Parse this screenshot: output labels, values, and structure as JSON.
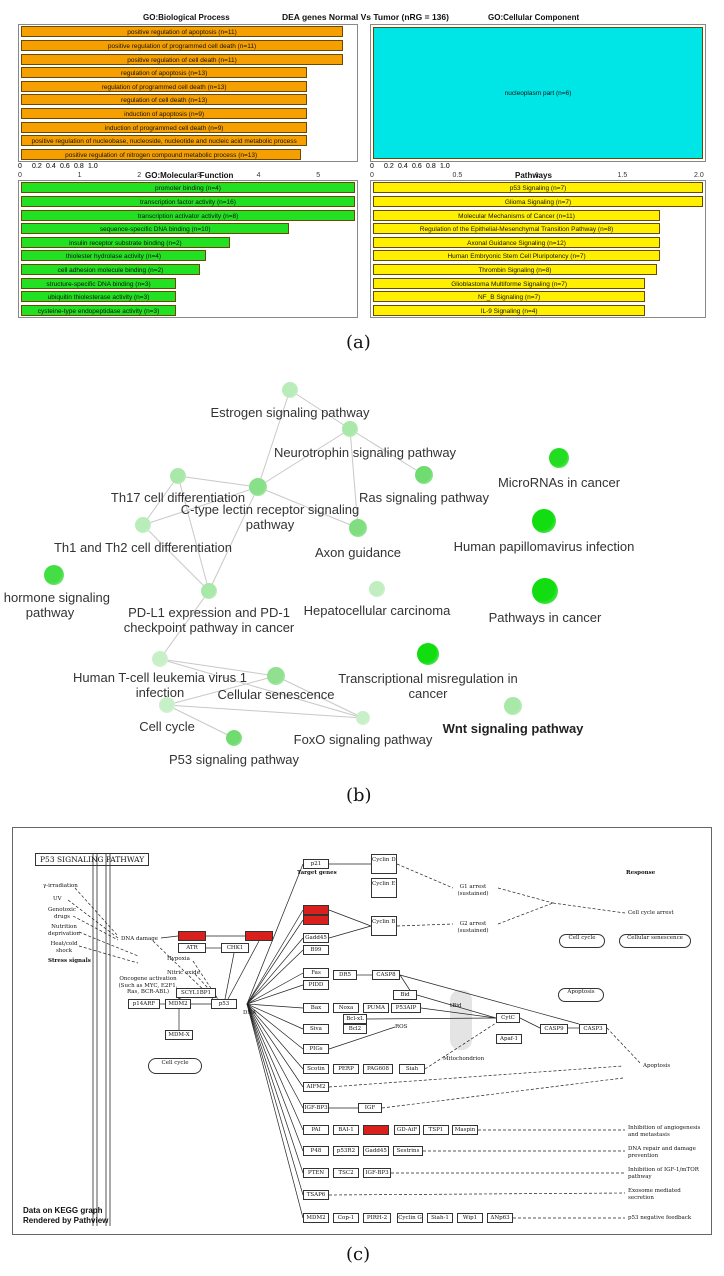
{
  "panel_a": {
    "label": "(a)",
    "main_title": "DEA genes Normal Vs Tumor (nRG = 136)",
    "bp": {
      "title": "GO:Biological Process",
      "ticks": [
        "0",
        "0.2",
        "0.4",
        "0.6",
        "0.8",
        "1.0"
      ],
      "axis": [
        "0",
        "1",
        "2",
        "3",
        "4",
        "5"
      ],
      "bars": [
        {
          "label": "positive regulation of apoptosis (n=11)",
          "value": 5.4
        },
        {
          "label": "positive regulation of programmed cell death (n=11)",
          "value": 5.4
        },
        {
          "label": "positive regulation of cell death (n=11)",
          "value": 5.4
        },
        {
          "label": "regulation of apoptosis (n=13)",
          "value": 4.8
        },
        {
          "label": "regulation of programmed cell death (n=13)",
          "value": 4.8
        },
        {
          "label": "regulation of cell death (n=13)",
          "value": 4.8
        },
        {
          "label": "induction of apoptosis (n=9)",
          "value": 4.8
        },
        {
          "label": "induction of programmed cell death (n=9)",
          "value": 4.8
        },
        {
          "label": "positive regulation of nucleobase, nucleoside, nucleotide and nucleic acid metabolic process",
          "value": 4.8
        },
        {
          "label": "positive regulation of nitrogen compound metabolic process (n=13)",
          "value": 4.7
        }
      ]
    },
    "cc": {
      "title": "GO:Cellular Component",
      "ticks": [
        "0",
        "0.2",
        "0.4",
        "0.6",
        "0.8",
        "1.0"
      ],
      "axis": [
        "0",
        "0.5",
        "1",
        "1.5",
        "2.0"
      ],
      "bars": [
        {
          "label": "nucleoplasm part (n=6)",
          "value": 2.0
        }
      ]
    },
    "mf": {
      "title": "GO:Molecular Function",
      "ticks": [
        "0",
        "0.2",
        "0.4",
        "0.6",
        "0.8",
        "1.0"
      ],
      "bars": [
        {
          "label": "promoter binding (n=4)",
          "value": 5.6
        },
        {
          "label": "transcription factor activity (n=16)",
          "value": 5.6
        },
        {
          "label": "transcription activator activity (n=8)",
          "value": 5.6
        },
        {
          "label": "sequence-specific DNA binding (n=10)",
          "value": 4.5
        },
        {
          "label": "insulin receptor substrate binding (n=2)",
          "value": 3.5
        },
        {
          "label": "thiolester hydrolase activity (n=4)",
          "value": 3.1
        },
        {
          "label": "cell adhesion molecule binding (n=2)",
          "value": 3.0
        },
        {
          "label": "structure-specific DNA binding (n=3)",
          "value": 2.6
        },
        {
          "label": "ubiquitin thiolesterase activity (n=3)",
          "value": 2.6
        },
        {
          "label": "cysteine-type endopeptidase activity (n=3)",
          "value": 2.6
        }
      ]
    },
    "pw": {
      "title": "Pathways",
      "ticks": [
        "0",
        "0.2",
        "0.4",
        "0.6",
        "0.8",
        "1.0"
      ],
      "bars": [
        {
          "label": "p53 Signaling (n=7)",
          "value": 2.0
        },
        {
          "label": "Glioma Signaling (n=7)",
          "value": 2.0
        },
        {
          "label": "Molecular Mechanisms of Cancer (n=11)",
          "value": 1.74
        },
        {
          "label": "Regulation of the Epithelial-Mesenchymal Transition Pathway (n=8)",
          "value": 1.74
        },
        {
          "label": "Axonal Guidance Signaling (n=12)",
          "value": 1.74
        },
        {
          "label": "Human Embryonic Stem Cell Pluripotency (n=7)",
          "value": 1.74
        },
        {
          "label": "Thrombin Signaling (n=8)",
          "value": 1.72
        },
        {
          "label": "Glioblastoma Multiforme Signaling (n=7)",
          "value": 1.65
        },
        {
          "label": "NF_B Signaling (n=7)",
          "value": 1.65
        },
        {
          "label": "IL-9 Signaling (n=4)",
          "value": 1.65
        }
      ]
    },
    "colors": {
      "bp": "#f5a000",
      "cc": "#00e5e5",
      "mf": "#22e022",
      "pw": "#ffef00"
    }
  },
  "panel_b": {
    "label": "(b)",
    "nodes": [
      {
        "id": "estrogen",
        "label": "Estrogen signaling pathway"
      },
      {
        "id": "neurotrophin",
        "label": "Neurotrophin signaling pathway"
      },
      {
        "id": "th17",
        "label": "Th17 cell differentiation"
      },
      {
        "id": "ctype",
        "label": "C-type lectin receptor signaling pathway"
      },
      {
        "id": "ras",
        "label": "Ras signaling pathway"
      },
      {
        "id": "mirna",
        "label": "MicroRNAs in cancer"
      },
      {
        "id": "th1",
        "label": "Th1 and Th2 cell differentiation"
      },
      {
        "id": "axon",
        "label": "Axon guidance"
      },
      {
        "id": "hpv",
        "label": "Human papillomavirus infection"
      },
      {
        "id": "steroid",
        "label": "id hormone signaling pathway"
      },
      {
        "id": "pdl1",
        "label": "PD-L1 expression and PD-1 checkpoint pathway in cancer"
      },
      {
        "id": "hcc",
        "label": "Hepatocellular carcinoma"
      },
      {
        "id": "pic",
        "label": "Pathways in cancer"
      },
      {
        "id": "htlv",
        "label": "Human T-cell leukemia virus 1 infection"
      },
      {
        "id": "trans",
        "label": "Transcriptional misregulation in cancer"
      },
      {
        "id": "senescence",
        "label": "Cellular senescence"
      },
      {
        "id": "cellcycle",
        "label": "Cell cycle"
      },
      {
        "id": "foxo",
        "label": "FoxO signaling pathway"
      },
      {
        "id": "wnt",
        "label": "Wnt signaling pathway"
      },
      {
        "id": "p53",
        "label": "P53 signaling pathway"
      }
    ]
  },
  "panel_c": {
    "label": "(c)",
    "title": "P53 SIGNALING PATHWAY",
    "footer_line1": "Data on KEGG graph",
    "footer_line2": "Rendered by Pathview",
    "headers": {
      "target": "Target genes",
      "response": "Response",
      "stress": "Stress signals"
    },
    "stress_signals": [
      "γ-irradiation",
      "UV",
      "Genotoxic drugs",
      "Nutrition deprivation",
      "Heat/cold shock"
    ],
    "labels": {
      "dna_damage": "DNA damage",
      "hypoxia": "Hypoxia",
      "nitric_oxide": "Nitric oxide",
      "oncogene": "Oncogene activation (Such as MYC, E2F1, Ras, BCR-ABL)",
      "dna": "DNA",
      "ros": "ROS",
      "mitochondrion": "Mitochondrion",
      "tbid": "tBid",
      "g1": "G1 arrest (sustained)",
      "g2": "G2 arrest (sustained)"
    },
    "genes": {
      "atm": "ATM",
      "atr": "ATR",
      "chk1": "CHK1",
      "chk2": "CHK2",
      "scyl1bp1": "SCYL1BP1",
      "p14arf": "p14ARF",
      "mdm2": "MDM2",
      "p53": "p53",
      "mdmx": "MDM-X",
      "p21": "p21",
      "cycd": "Cyclin D CDK4/6",
      "cyce": "Cyclin E CDK2",
      "cycb": "Cyclin B Cdc2",
      "reprimo": "Reprimo",
      "14-3-3": "14-3-3σ",
      "gadd45": "Gadd45",
      "b99": "B99",
      "fas": "Fas",
      "pidd": "PIDD",
      "dr5": "DR5",
      "casp8": "CASP8",
      "bid": "Bid",
      "bax": "Bax",
      "noxa": "Noxa",
      "puma": "PUMA",
      "p53aip": "P53AIP",
      "bclxl": "Bcl-xL",
      "bcl2": "Bcl2",
      "cytc": "CytC",
      "apaf1": "Apaf-1",
      "casp9": "CASP9",
      "casp3": "CASP3",
      "siva": "Siva",
      "pigs": "PIGs",
      "scotin": "Scotin",
      "perp": "PERP",
      "pag608": "PAG608",
      "siah": "Siah",
      "aifm2": "AIFM2",
      "igfbp3": "IGF-BP3",
      "igf": "IGF",
      "pai": "PAI",
      "bai1": "BAI-1",
      "tsp1": "TSP1",
      "gdaif": "GD-AiF",
      "maspin": "Maspin",
      "kai1": "KAI1",
      "p48": "P48",
      "p53r2": "p53R2",
      "gadd45b": "Gadd45",
      "sestrins": "Sestrins",
      "pten": "PTEN",
      "tsc2": "TSC2",
      "igfbp3b": "IGF-BP3",
      "tsap6": "TSAP6",
      "mdm2b": "MDM2",
      "cop1": "Cop-1",
      "pirh2": "PIRH-2",
      "cycg": "Cyclin G",
      "siah1": "Siah-1",
      "wip1": "Wip1",
      "dnp63": "ΔNp63"
    },
    "responses": {
      "cc_arrest": "Cell cycle arrest",
      "cellcycle": "Cell cycle",
      "senescence": "Cellular senescence",
      "apoptosis_box": "Apoptosis",
      "apoptosis": "Apoptosis",
      "angio": "Inhibition of angiogenesis and metastasis",
      "repair": "DNA repair and damage prevention",
      "igf": "Inhibition of IGF-1/mTOR pathway",
      "exosome": "Exosome mediated secretion",
      "feedback": "p53 negative feedback",
      "cellcycle_left": "Cell cycle"
    }
  }
}
